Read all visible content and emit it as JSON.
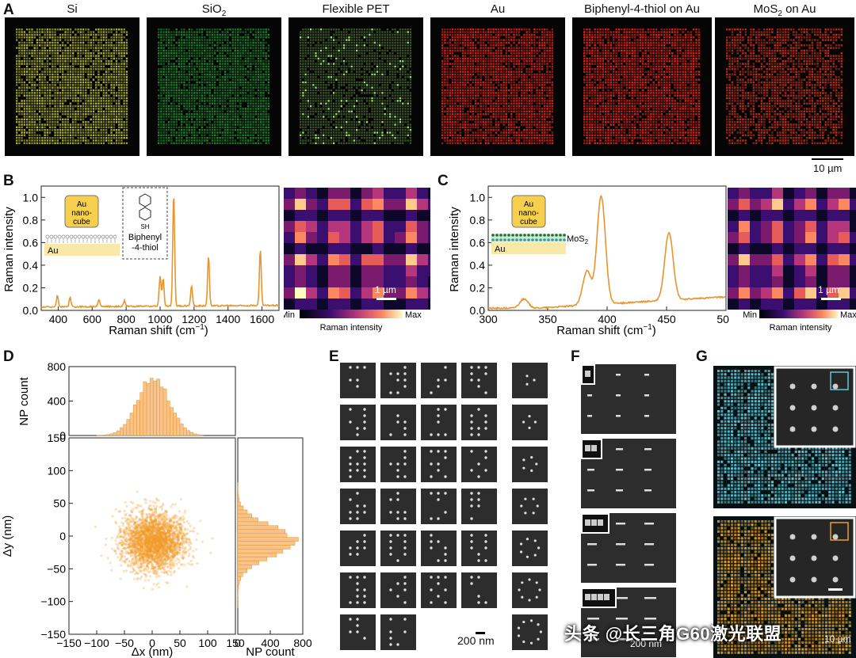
{
  "panel_letters": [
    "A",
    "B",
    "C",
    "D",
    "E",
    "F",
    "G"
  ],
  "panelA": {
    "titles": [
      "Si",
      "SiO",
      "Flexible PET",
      "Au",
      "Biphenyl-4-thiol on Au",
      "MoS",
      "on Au"
    ],
    "subscript": "2",
    "scalebar": "10 µm",
    "colors": [
      "#b9bd35",
      "#1f8a2e",
      "#9be36a",
      "#e2231a",
      "#e4231b",
      "#c8301c"
    ]
  },
  "panelB": {
    "inset_text": [
      "Au",
      "nano-",
      "cube"
    ],
    "sub_label": "Au",
    "mol_top": "SH",
    "mol_name": [
      "Biphenyl",
      "-4-thiol"
    ],
    "map_scale": "1 µm",
    "colorbar_min": "Min",
    "colorbar_max": "Max",
    "colorbar_label": "Raman intensity",
    "line_color": "#e8952e"
  },
  "panelC": {
    "inset_text": [
      "Au",
      "nano-",
      "cube"
    ],
    "sub_label": "Au",
    "layer_label": "MoS",
    "layer_sub": "2",
    "map_scale": "1 µm",
    "colorbar_min": "Min",
    "colorbar_max": "Max",
    "colorbar_label": "Raman intensity"
  },
  "panelD": {
    "point_color": "#f39a2c"
  },
  "panelE": {
    "scale": "200 nm"
  },
  "panelF": {
    "scale": "200 nm"
  },
  "panelG": {
    "scale": "10 µm"
  },
  "watermark": "头条 @长三角G60激光联盟",
  "chart_data": [
    {
      "type": "line",
      "panel": "B",
      "xlabel": "Raman shift (cm",
      "xlabel_sup": "−1",
      "xlabel_end": ")",
      "ylabel": "Raman intensity",
      "xlim": [
        300,
        1700
      ],
      "ylim": [
        0,
        1.1
      ],
      "xticks": [
        400,
        600,
        800,
        1000,
        1200,
        1400,
        1600
      ],
      "yticks": [
        0.0,
        0.2,
        0.4,
        0.6,
        0.8,
        1.0
      ],
      "ytick_labels": [
        "0.0",
        "0.2",
        "0.4",
        "0.6",
        "0.8",
        "1.0"
      ],
      "peaks": [
        [
          395,
          0.1
        ],
        [
          470,
          0.08
        ],
        [
          640,
          0.06
        ],
        [
          790,
          0.05
        ],
        [
          1000,
          0.27
        ],
        [
          1018,
          0.24
        ],
        [
          1080,
          1.0
        ],
        [
          1185,
          0.18
        ],
        [
          1285,
          0.44
        ],
        [
          1590,
          0.49
        ]
      ]
    },
    {
      "type": "line",
      "panel": "C",
      "xlabel": "Raman shift (cm",
      "xlabel_sup": "−1",
      "xlabel_end": ")",
      "ylabel": "Raman intensity",
      "xlim": [
        300,
        500
      ],
      "ylim": [
        0,
        1.1
      ],
      "xticks": [
        300,
        350,
        400,
        450,
        500
      ],
      "yticks": [
        0.0,
        0.2,
        0.4,
        0.6,
        0.8,
        1.0
      ],
      "ytick_labels": [
        "0.0",
        "0.2",
        "0.4",
        "0.6",
        "0.8",
        "1.0"
      ],
      "peaks": [
        [
          330,
          0.08
        ],
        [
          383,
          0.3
        ],
        [
          395,
          0.96
        ],
        [
          452,
          0.6
        ]
      ]
    },
    {
      "type": "histogram",
      "panel": "D-top",
      "ylabel": "NP count",
      "yticks": [
        0,
        400,
        800
      ],
      "ylim": [
        0,
        800
      ],
      "xlim": [
        -150,
        150
      ]
    },
    {
      "type": "scatter",
      "panel": "D-main",
      "xlabel": "Δx (nm)",
      "ylabel": "Δy (nm)",
      "xlim": [
        -150,
        150
      ],
      "ylim": [
        -150,
        150
      ],
      "xticks": [
        -150,
        -100,
        -50,
        0,
        50,
        100,
        150
      ],
      "yticks": [
        -150,
        -100,
        -50,
        0,
        50,
        100,
        150
      ]
    },
    {
      "type": "histogram",
      "panel": "D-right",
      "xlabel": "NP count",
      "xticks": [
        0,
        400,
        800
      ],
      "xtick_labels": [
        "0",
        "400",
        "800"
      ],
      "xlim": [
        0,
        800
      ],
      "ylim": [
        -150,
        150
      ]
    }
  ]
}
